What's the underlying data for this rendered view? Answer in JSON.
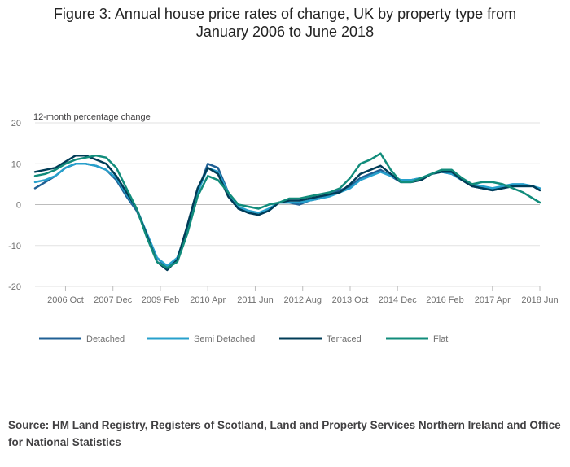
{
  "title": {
    "line1": "Figure 3: Annual house price rates of change, UK by property type from",
    "line2": "January 2006 to June 2018"
  },
  "source": "Source: HM Land Registry, Registers of Scotland, Land and Property Services Northern Ireland and Office for National Statistics",
  "chart_data": {
    "type": "line",
    "title": "Figure 3: Annual house price rates of change, UK by property type from January 2006 to June 2018",
    "ylabel": "12-month percentage change",
    "xlabel": "",
    "ylim": [
      -20,
      20
    ],
    "yticks": [
      "20",
      "10",
      "0",
      "-10",
      "-20"
    ],
    "x_start": "Jan 2006",
    "x_end": "Jun 2018",
    "xticks": [
      {
        "label": "2006 Oct",
        "index": 9
      },
      {
        "label": "2007 Dec",
        "index": 23
      },
      {
        "label": "2009 Feb",
        "index": 37
      },
      {
        "label": "2010 Apr",
        "index": 51
      },
      {
        "label": "2011 Jun",
        "index": 65
      },
      {
        "label": "2012 Aug",
        "index": 79
      },
      {
        "label": "2013 Oct",
        "index": 93
      },
      {
        "label": "2014 Dec",
        "index": 107
      },
      {
        "label": "2016 Feb",
        "index": 121
      },
      {
        "label": "2017 Apr",
        "index": 135
      },
      {
        "label": "2018 Jun",
        "index": 149
      }
    ],
    "anchor_months": [
      0,
      3,
      6,
      9,
      12,
      15,
      18,
      21,
      24,
      27,
      30,
      33,
      36,
      39,
      42,
      45,
      48,
      51,
      54,
      57,
      60,
      63,
      66,
      69,
      72,
      75,
      78,
      81,
      84,
      87,
      90,
      93,
      96,
      99,
      102,
      105,
      108,
      111,
      114,
      117,
      120,
      123,
      126,
      129,
      132,
      135,
      138,
      141,
      144,
      147,
      149
    ],
    "series": [
      {
        "name": "Detached",
        "color": "#206095",
        "values": [
          4,
          5.5,
          7,
          9,
          10,
          10,
          9.5,
          8.5,
          6,
          2,
          -1.5,
          -7,
          -13,
          -15.5,
          -13,
          -6,
          3,
          10,
          9,
          3,
          -1,
          -2,
          -2.5,
          -1.5,
          0.5,
          0.5,
          0,
          1,
          1.5,
          2.5,
          3.5,
          4.5,
          6.5,
          7.5,
          8.5,
          7,
          5.5,
          6,
          6.5,
          7.5,
          8,
          7.5,
          6,
          4.5,
          4,
          3.5,
          4,
          4.5,
          4.5,
          4.5,
          3.5
        ]
      },
      {
        "name": "Semi Detached",
        "color": "#27a0cc",
        "values": [
          5.5,
          6,
          7,
          9,
          10,
          10,
          9.5,
          8.5,
          6.5,
          2.5,
          -1,
          -7,
          -13,
          -15,
          -13,
          -6,
          3,
          9,
          8,
          3,
          -0.5,
          -1.5,
          -2,
          -1,
          0.5,
          0.5,
          0.5,
          1,
          1.5,
          2,
          3,
          4,
          6,
          7,
          8,
          7,
          6,
          6,
          6.5,
          7.5,
          8,
          7.5,
          6,
          5,
          4.5,
          4,
          4.5,
          5,
          5,
          4.5,
          4
        ]
      },
      {
        "name": "Terraced",
        "color": "#003c57",
        "values": [
          8,
          8.5,
          9,
          10.5,
          12,
          12,
          11,
          10,
          7,
          3,
          -1,
          -7.5,
          -14,
          -16,
          -13.5,
          -5,
          4,
          9,
          7.5,
          2,
          -1,
          -2,
          -2.5,
          -1.5,
          0.5,
          1,
          1,
          1.5,
          2,
          2.5,
          3,
          5,
          7.5,
          8.5,
          9.5,
          7.5,
          5.5,
          5.5,
          6,
          7.5,
          8,
          8,
          6,
          4.5,
          4,
          3.5,
          4,
          4.5,
          4.5,
          4.5,
          3.5
        ]
      },
      {
        "name": "Flat",
        "color": "#118c7b",
        "values": [
          7,
          7.5,
          8.5,
          10,
          11,
          11.5,
          12,
          11.5,
          9,
          4,
          -1,
          -8,
          -14,
          -15.5,
          -14,
          -7,
          2,
          7,
          6,
          3,
          0,
          -0.5,
          -1,
          0,
          0.5,
          1.5,
          1.5,
          2,
          2.5,
          3,
          4,
          6.5,
          10,
          11,
          12.5,
          8.5,
          5.5,
          5.5,
          6.5,
          7.5,
          8.5,
          8.5,
          6.5,
          5,
          5.5,
          5.5,
          5,
          4,
          3,
          1.5,
          0.5
        ]
      }
    ],
    "legend_position": "bottom"
  }
}
